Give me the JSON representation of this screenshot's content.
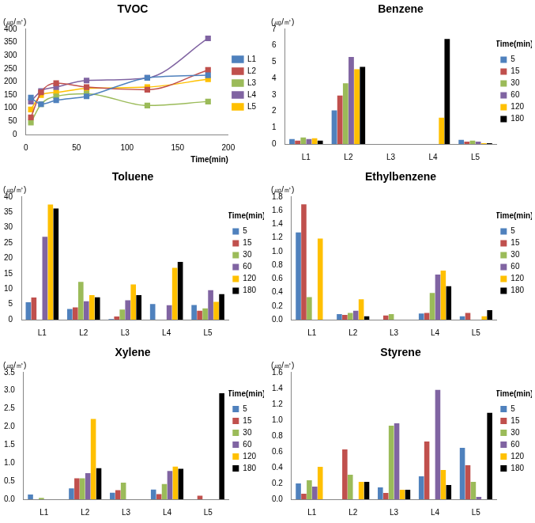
{
  "chart_data": [
    {
      "type": "line",
      "title": "TVOC",
      "y_label": "(㎍/㎥)",
      "x_label": "Time(min)",
      "x": [
        5,
        15,
        30,
        60,
        120,
        180
      ],
      "xlim": [
        0,
        200
      ],
      "xticks": [
        0,
        50,
        100,
        150,
        200
      ],
      "ylim": [
        0,
        400
      ],
      "yticks": [
        0,
        50,
        100,
        150,
        200,
        250,
        300,
        350,
        400
      ],
      "grid": false,
      "legend": "right",
      "marker": "square",
      "series": [
        {
          "name": "L1",
          "color": "#4f81bd",
          "values": [
            140,
            115,
            130,
            145,
            215,
            225
          ]
        },
        {
          "name": "L2",
          "color": "#c0504d",
          "values": [
            65,
            160,
            195,
            180,
            170,
            245
          ]
        },
        {
          "name": "L3",
          "color": "#9bbb59",
          "values": [
            45,
            115,
            145,
            155,
            110,
            125
          ]
        },
        {
          "name": "L4",
          "color": "#8064a2",
          "values": [
            125,
            165,
            180,
            205,
            215,
            365
          ]
        },
        {
          "name": "L5",
          "color": "#ffc000",
          "values": [
            95,
            150,
            160,
            175,
            180,
            210
          ]
        }
      ]
    },
    {
      "type": "bar",
      "title": "Benzene",
      "y_label": "(㎍/㎥)",
      "legend_title": "Time(min)",
      "categories": [
        "L1",
        "L2",
        "L3",
        "L4",
        "L5"
      ],
      "ylim": [
        0,
        7
      ],
      "yticks": [
        0,
        1,
        2,
        3,
        4,
        5,
        6,
        7
      ],
      "grid": false,
      "legend": "right",
      "series": [
        {
          "name": "5",
          "color": "#4f81bd",
          "values": [
            0.3,
            2.05,
            0,
            0,
            0.25
          ]
        },
        {
          "name": "15",
          "color": "#c0504d",
          "values": [
            0.2,
            2.95,
            0,
            0,
            0.15
          ]
        },
        {
          "name": "30",
          "color": "#9bbb59",
          "values": [
            0.4,
            3.7,
            0,
            0,
            0.2
          ]
        },
        {
          "name": "60",
          "color": "#8064a2",
          "values": [
            0.3,
            5.3,
            0,
            0,
            0.15
          ]
        },
        {
          "name": "120",
          "color": "#ffc000",
          "values": [
            0.35,
            4.55,
            0,
            1.6,
            0.05
          ]
        },
        {
          "name": "180",
          "color": "#000000",
          "values": [
            0.2,
            4.7,
            0,
            6.4,
            0.05
          ]
        }
      ]
    },
    {
      "type": "bar",
      "title": "Toluene",
      "y_label": "(㎍/㎥)",
      "legend_title": "Time(min)",
      "categories": [
        "L1",
        "L2",
        "L3",
        "L4",
        "L5"
      ],
      "ylim": [
        0,
        40
      ],
      "yticks": [
        0,
        5,
        10,
        15,
        20,
        25,
        30,
        35,
        40
      ],
      "grid": false,
      "legend": "right",
      "series": [
        {
          "name": "5",
          "color": "#4f81bd",
          "values": [
            5.7,
            3.5,
            0.2,
            5.1,
            4.8
          ]
        },
        {
          "name": "15",
          "color": "#c0504d",
          "values": [
            7.2,
            4,
            1,
            0,
            2.9
          ]
        },
        {
          "name": "30",
          "color": "#9bbb59",
          "values": [
            0,
            12.3,
            3.3,
            0,
            3.7
          ]
        },
        {
          "name": "60",
          "color": "#8064a2",
          "values": [
            27,
            6,
            6.3,
            4.7,
            9.6
          ]
        },
        {
          "name": "120",
          "color": "#ffc000",
          "values": [
            37.5,
            8,
            11.5,
            16.9,
            5.8
          ]
        },
        {
          "name": "180",
          "color": "#000000",
          "values": [
            36.2,
            7.3,
            8,
            18.8,
            8.3
          ]
        }
      ]
    },
    {
      "type": "bar",
      "title": "Ethylbenzene",
      "y_label": "(㎍/㎥)",
      "legend_title": "Time(min)",
      "categories": [
        "L1",
        "L2",
        "L3",
        "L4",
        "L5"
      ],
      "ylim": [
        0,
        1.8
      ],
      "yticks": [
        {
          "value": 0,
          "label": "0.0"
        },
        {
          "value": 0.2,
          "label": "0.2"
        },
        {
          "value": 0.4,
          "label": "0.4"
        },
        {
          "value": 0.6,
          "label": "0.6"
        },
        {
          "value": 0.8,
          "label": "0.8"
        },
        {
          "value": 1,
          "label": "1.0"
        },
        {
          "value": 1.2,
          "label": "1.2"
        },
        {
          "value": 1.4,
          "label": "1.4"
        },
        {
          "value": 1.6,
          "label": "1.6"
        },
        {
          "value": 1.8,
          "label": "1.8"
        }
      ],
      "grid": false,
      "legend": "right",
      "series": [
        {
          "name": "5",
          "color": "#4f81bd",
          "values": [
            1.28,
            0.08,
            0,
            0.09,
            0.05
          ]
        },
        {
          "name": "15",
          "color": "#c0504d",
          "values": [
            1.69,
            0.07,
            0.06,
            0.1,
            0.1
          ]
        },
        {
          "name": "30",
          "color": "#9bbb59",
          "values": [
            0.33,
            0.1,
            0.08,
            0.39,
            0
          ]
        },
        {
          "name": "60",
          "color": "#8064a2",
          "values": [
            0,
            0.13,
            0,
            0.66,
            0
          ]
        },
        {
          "name": "120",
          "color": "#ffc000",
          "values": [
            1.19,
            0.3,
            0,
            0.72,
            0.05
          ]
        },
        {
          "name": "180",
          "color": "#000000",
          "values": [
            0,
            0.05,
            0,
            0.49,
            0.14
          ]
        }
      ]
    },
    {
      "type": "bar",
      "title": "Xylene",
      "y_label": "(㎍/㎥)",
      "legend_title": "Time(min)",
      "categories": [
        "L1",
        "L2",
        "L3",
        "L4",
        "L5"
      ],
      "ylim": [
        0,
        3.5
      ],
      "yticks": [
        {
          "value": 0,
          "label": "0.0"
        },
        {
          "value": 0.5,
          "label": "0.5"
        },
        {
          "value": 1,
          "label": "1.0"
        },
        {
          "value": 1.5,
          "label": "1.5"
        },
        {
          "value": 2,
          "label": "2.0"
        },
        {
          "value": 2.5,
          "label": "2.5"
        },
        {
          "value": 3,
          "label": "3.0"
        },
        {
          "value": 3.5,
          "label": "3.5"
        }
      ],
      "grid": false,
      "legend": "right",
      "series": [
        {
          "name": "5",
          "color": "#4f81bd",
          "values": [
            0.13,
            0.3,
            0.18,
            0.27,
            0
          ]
        },
        {
          "name": "15",
          "color": "#c0504d",
          "values": [
            0,
            0.58,
            0.25,
            0.14,
            0.1
          ]
        },
        {
          "name": "30",
          "color": "#9bbb59",
          "values": [
            0.04,
            0.58,
            0.46,
            0.42,
            0
          ]
        },
        {
          "name": "60",
          "color": "#8064a2",
          "values": [
            0,
            0.72,
            0,
            0.78,
            0
          ]
        },
        {
          "name": "120",
          "color": "#ffc000",
          "values": [
            0,
            2.22,
            0,
            0.9,
            0
          ]
        },
        {
          "name": "180",
          "color": "#000000",
          "values": [
            0,
            0.86,
            0,
            0.84,
            2.93
          ]
        }
      ]
    },
    {
      "type": "bar",
      "title": "Styrene",
      "y_label": "(㎍/㎥)",
      "legend_title": "Time(min)",
      "categories": [
        "L1",
        "L2",
        "L3",
        "L4",
        "L5"
      ],
      "ylim": [
        0,
        1.6
      ],
      "yticks": [
        {
          "value": 0,
          "label": "0.0"
        },
        {
          "value": 0.2,
          "label": "0.2"
        },
        {
          "value": 0.4,
          "label": "0.4"
        },
        {
          "value": 0.6,
          "label": "0.6"
        },
        {
          "value": 0.8,
          "label": "0.8"
        },
        {
          "value": 1,
          "label": "1.0"
        },
        {
          "value": 1.2,
          "label": "1.2"
        },
        {
          "value": 1.4,
          "label": "1.4"
        },
        {
          "value": 1.6,
          "label": "1.6"
        }
      ],
      "grid": false,
      "legend": "right",
      "series": [
        {
          "name": "5",
          "color": "#4f81bd",
          "values": [
            0.2,
            0,
            0.15,
            0.29,
            0.65
          ]
        },
        {
          "name": "15",
          "color": "#c0504d",
          "values": [
            0.07,
            0.63,
            0.08,
            0.73,
            0.43
          ]
        },
        {
          "name": "30",
          "color": "#9bbb59",
          "values": [
            0.24,
            0.31,
            0.93,
            0,
            0.22
          ]
        },
        {
          "name": "60",
          "color": "#8064a2",
          "values": [
            0.16,
            0,
            0.96,
            1.38,
            0.03
          ]
        },
        {
          "name": "120",
          "color": "#ffc000",
          "values": [
            0.41,
            0.22,
            0.12,
            0.37,
            0
          ]
        },
        {
          "name": "180",
          "color": "#000000",
          "values": [
            0,
            0.22,
            0.12,
            0.18,
            1.09
          ]
        }
      ]
    }
  ]
}
